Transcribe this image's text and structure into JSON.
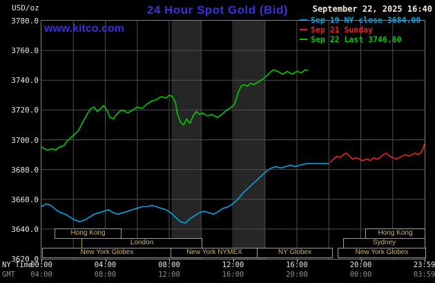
{
  "header": {
    "title": "24 Hour Spot Gold (Bid)",
    "datetime": "September 22, 2025 16:40",
    "watermark": "www.kitco.com",
    "y_axis_unit": "USD/oz"
  },
  "legend": [
    {
      "label": "Sep 19 NY close 3684.00",
      "color": "#00a8e8"
    },
    {
      "label": "Sep 21 Sunday",
      "color": "#ee2222"
    },
    {
      "label": "Sep 22 Last 3746.60",
      "color": "#00cc00"
    }
  ],
  "axes": {
    "x_ny_label": "NY Time",
    "x_gmt_label": "GMT",
    "y_ticks": [
      "3780.0",
      "3760.0",
      "3740.0",
      "3720.0",
      "3700.0",
      "3680.0",
      "3660.0",
      "3640.0",
      "3620.0"
    ],
    "x_ny_ticks": [
      "00:00",
      "04:00",
      "08:00",
      "12:00",
      "16:00",
      "20:00",
      "23:59"
    ],
    "x_gmt_ticks": [
      "04:00",
      "08:00",
      "12:00",
      "16:00",
      "20:00",
      "00:00",
      "03:59"
    ]
  },
  "sessions": [
    {
      "row": 1,
      "label": "Hong Kong",
      "start": 0.8,
      "end": 4.9
    },
    {
      "row": 1,
      "label": "Hong Kong",
      "start": 20.3,
      "end": 23.98
    },
    {
      "row": 2,
      "label": "London",
      "start": 2.5,
      "end": 10.0
    },
    {
      "row": 2,
      "label": "Sydney",
      "start": 18.9,
      "end": 23.98
    },
    {
      "row": 3,
      "label": "New York Globex",
      "start": 0.05,
      "end": 8.1
    },
    {
      "row": 3,
      "label": "New York NYMEX",
      "start": 8.1,
      "end": 13.5
    },
    {
      "row": 3,
      "label": "NY Globex",
      "start": 13.5,
      "end": 18.15
    },
    {
      "row": 3,
      "label": "New York Globex",
      "start": 18.55,
      "end": 23.98
    }
  ],
  "chart_data": {
    "type": "line",
    "title": "24 Hour Spot Gold (Bid)",
    "xlabel": "NY Time",
    "ylabel": "USD/oz",
    "xlim": [
      0,
      24
    ],
    "ylim": [
      3620,
      3780
    ],
    "x_ticks_hours": [
      0,
      4,
      8,
      12,
      16,
      20,
      23.983
    ],
    "grid": {
      "color": "#515151",
      "x_hours": [
        2,
        4,
        6,
        8,
        10,
        12,
        14,
        16,
        18,
        20,
        22
      ],
      "y_values": [
        3640,
        3660,
        3680,
        3700,
        3720,
        3740,
        3760
      ]
    },
    "band_color": "#262626",
    "shaded_bands": [
      {
        "x0": 8.15,
        "x1": 10.0
      },
      {
        "x0": 12.05,
        "x1": 14.0
      }
    ],
    "series": [
      {
        "name": "Sep 19 NY close",
        "color": "#00a8e8",
        "close_value": 3684.0,
        "points": [
          [
            0,
            3655
          ],
          [
            0.3,
            3657
          ],
          [
            0.6,
            3656
          ],
          [
            0.9,
            3653
          ],
          [
            1.2,
            3651
          ],
          [
            1.5,
            3650
          ],
          [
            1.8,
            3648
          ],
          [
            2.1,
            3646
          ],
          [
            2.4,
            3645
          ],
          [
            2.7,
            3646
          ],
          [
            3.0,
            3648
          ],
          [
            3.3,
            3650
          ],
          [
            3.6,
            3651
          ],
          [
            3.9,
            3652
          ],
          [
            4.2,
            3653
          ],
          [
            4.5,
            3651
          ],
          [
            4.8,
            3650
          ],
          [
            5.1,
            3651
          ],
          [
            5.4,
            3652
          ],
          [
            5.7,
            3653
          ],
          [
            6.0,
            3654
          ],
          [
            6.3,
            3655
          ],
          [
            6.6,
            3655
          ],
          [
            6.9,
            3656
          ],
          [
            7.2,
            3655
          ],
          [
            7.5,
            3654
          ],
          [
            7.8,
            3653
          ],
          [
            8.1,
            3651
          ],
          [
            8.4,
            3648
          ],
          [
            8.7,
            3645
          ],
          [
            9.0,
            3644
          ],
          [
            9.3,
            3647
          ],
          [
            9.6,
            3649
          ],
          [
            9.9,
            3651
          ],
          [
            10.2,
            3652
          ],
          [
            10.5,
            3651
          ],
          [
            10.8,
            3650
          ],
          [
            11.1,
            3652
          ],
          [
            11.4,
            3654
          ],
          [
            11.7,
            3655
          ],
          [
            12.0,
            3657
          ],
          [
            12.3,
            3660
          ],
          [
            12.6,
            3664
          ],
          [
            12.9,
            3667
          ],
          [
            13.2,
            3670
          ],
          [
            13.5,
            3673
          ],
          [
            13.8,
            3676
          ],
          [
            14.1,
            3679
          ],
          [
            14.4,
            3681
          ],
          [
            14.7,
            3682
          ],
          [
            15.0,
            3681
          ],
          [
            15.3,
            3682
          ],
          [
            15.6,
            3683
          ],
          [
            15.9,
            3682
          ],
          [
            16.2,
            3683
          ],
          [
            16.6,
            3684
          ],
          [
            17.2,
            3684
          ],
          [
            18.0,
            3684
          ]
        ]
      },
      {
        "name": "Sep 21 Sunday",
        "color": "#ee2222",
        "points": [
          [
            18.1,
            3685
          ],
          [
            18.3,
            3687
          ],
          [
            18.5,
            3689
          ],
          [
            18.7,
            3688
          ],
          [
            18.9,
            3690
          ],
          [
            19.1,
            3691
          ],
          [
            19.3,
            3689
          ],
          [
            19.5,
            3687
          ],
          [
            19.7,
            3688
          ],
          [
            19.9,
            3687
          ],
          [
            20.1,
            3686
          ],
          [
            20.4,
            3687
          ],
          [
            20.6,
            3686
          ],
          [
            20.8,
            3688
          ],
          [
            21.0,
            3687
          ],
          [
            21.2,
            3688
          ],
          [
            21.4,
            3690
          ],
          [
            21.6,
            3691
          ],
          [
            21.8,
            3689
          ],
          [
            22.0,
            3688
          ],
          [
            22.2,
            3687
          ],
          [
            22.4,
            3688
          ],
          [
            22.6,
            3689
          ],
          [
            22.8,
            3690
          ],
          [
            23.0,
            3689
          ],
          [
            23.2,
            3690
          ],
          [
            23.4,
            3691
          ],
          [
            23.6,
            3690
          ],
          [
            23.8,
            3692
          ],
          [
            23.9,
            3694
          ],
          [
            23.98,
            3697
          ]
        ]
      },
      {
        "name": "Sep 22 Last",
        "color": "#00cc00",
        "last_value": 3746.6,
        "points": [
          [
            0,
            3695
          ],
          [
            0.2,
            3694
          ],
          [
            0.4,
            3693
          ],
          [
            0.7,
            3694
          ],
          [
            0.9,
            3693
          ],
          [
            1.1,
            3695
          ],
          [
            1.4,
            3696
          ],
          [
            1.6,
            3699
          ],
          [
            1.9,
            3702
          ],
          [
            2.1,
            3704
          ],
          [
            2.3,
            3706
          ],
          [
            2.5,
            3710
          ],
          [
            2.7,
            3714
          ],
          [
            2.9,
            3718
          ],
          [
            3.1,
            3721
          ],
          [
            3.3,
            3722
          ],
          [
            3.5,
            3719
          ],
          [
            3.7,
            3721
          ],
          [
            3.9,
            3723
          ],
          [
            4.1,
            3720
          ],
          [
            4.3,
            3715
          ],
          [
            4.5,
            3714
          ],
          [
            4.7,
            3717
          ],
          [
            4.9,
            3719
          ],
          [
            5.1,
            3720
          ],
          [
            5.4,
            3718
          ],
          [
            5.7,
            3720
          ],
          [
            6.0,
            3722
          ],
          [
            6.3,
            3721
          ],
          [
            6.6,
            3724
          ],
          [
            6.9,
            3726
          ],
          [
            7.2,
            3727
          ],
          [
            7.5,
            3729
          ],
          [
            7.8,
            3728
          ],
          [
            8.0,
            3730
          ],
          [
            8.2,
            3729
          ],
          [
            8.4,
            3725
          ],
          [
            8.5,
            3718
          ],
          [
            8.7,
            3712
          ],
          [
            8.9,
            3710
          ],
          [
            9.1,
            3714
          ],
          [
            9.3,
            3711
          ],
          [
            9.5,
            3716
          ],
          [
            9.7,
            3719
          ],
          [
            9.9,
            3717
          ],
          [
            10.1,
            3718
          ],
          [
            10.4,
            3716
          ],
          [
            10.7,
            3717
          ],
          [
            11.0,
            3715
          ],
          [
            11.3,
            3717
          ],
          [
            11.6,
            3720
          ],
          [
            11.9,
            3722
          ],
          [
            12.1,
            3724
          ],
          [
            12.3,
            3731
          ],
          [
            12.5,
            3736
          ],
          [
            12.7,
            3737
          ],
          [
            12.9,
            3736
          ],
          [
            13.1,
            3738
          ],
          [
            13.3,
            3737
          ],
          [
            13.6,
            3739
          ],
          [
            13.9,
            3741
          ],
          [
            14.2,
            3744
          ],
          [
            14.5,
            3747
          ],
          [
            14.8,
            3746
          ],
          [
            15.1,
            3744
          ],
          [
            15.4,
            3746
          ],
          [
            15.7,
            3744
          ],
          [
            16.0,
            3746
          ],
          [
            16.3,
            3745
          ],
          [
            16.5,
            3747
          ],
          [
            16.67,
            3746.6
          ]
        ]
      }
    ]
  }
}
